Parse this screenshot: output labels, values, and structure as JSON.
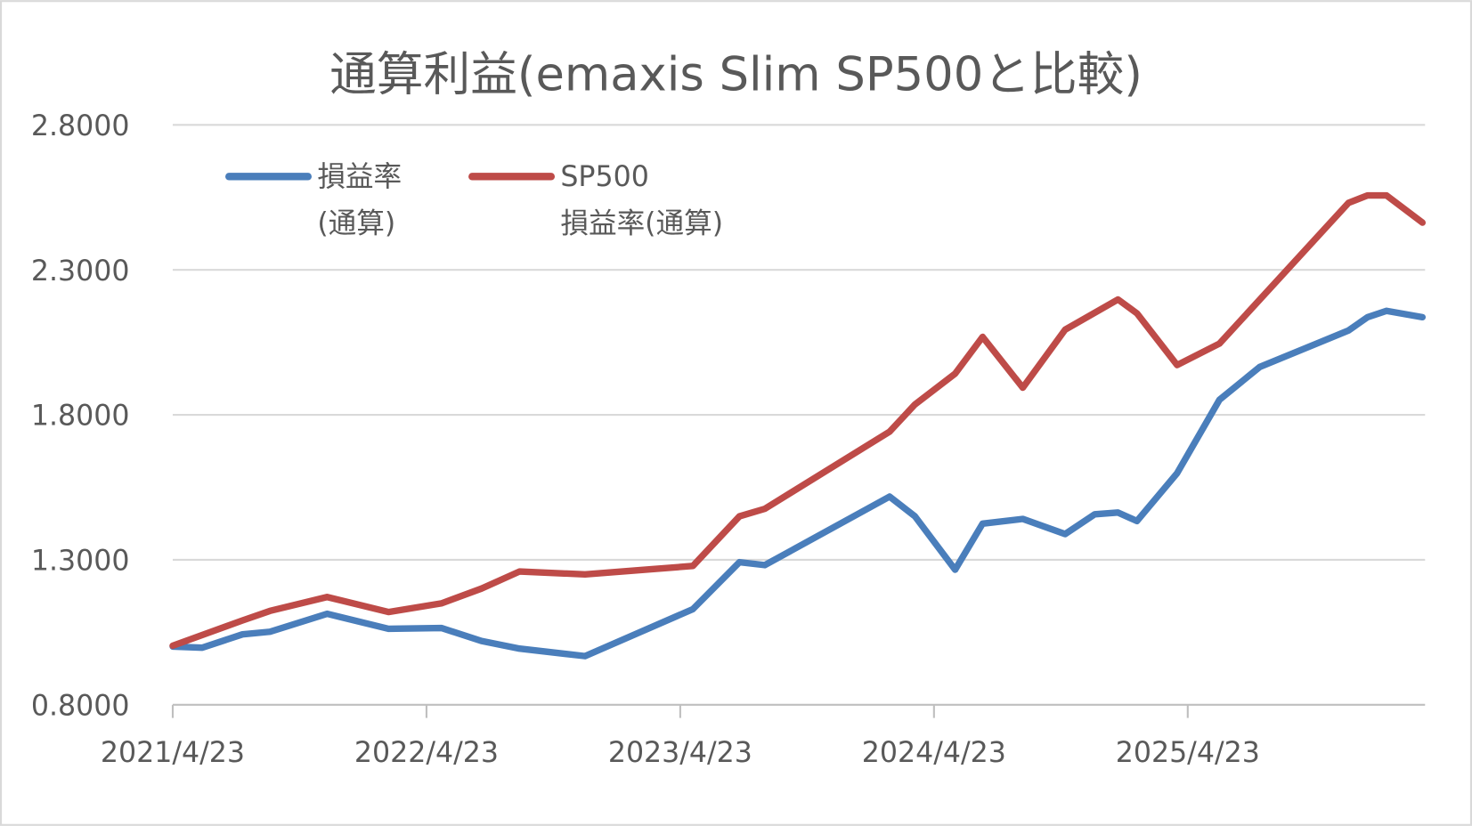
{
  "chart_data": {
    "type": "line",
    "title": "通算利益(emaxis Slim SP500と比較)",
    "xlabel": "",
    "ylabel": "",
    "x_unit": "months since 2021/4/23",
    "xlim": [
      0,
      59.5
    ],
    "ylim": [
      0.8,
      2.8
    ],
    "y_ticks": [
      "0.8000",
      "1.3000",
      "1.8000",
      "2.3000",
      "2.8000"
    ],
    "y_tick_values": [
      0.8,
      1.3,
      1.8,
      2.3,
      2.8
    ],
    "x_ticks": [
      "2021/4/23",
      "2022/4/23",
      "2023/4/23",
      "2024/4/23",
      "2025/4/23"
    ],
    "x_tick_values": [
      0,
      12,
      24,
      36,
      48
    ],
    "grid": true,
    "legend_position": "top-left",
    "series": [
      {
        "name": "損益率(通算)",
        "legend_lines": [
          "損益率",
          "(通算)"
        ],
        "color": "#4a7ebb",
        "points": [
          [
            0,
            1.001
          ],
          [
            1.4,
            0.997
          ],
          [
            3.3,
            1.043
          ],
          [
            4.6,
            1.052
          ],
          [
            7.3,
            1.114
          ],
          [
            10.2,
            1.062
          ],
          [
            12.7,
            1.065
          ],
          [
            14.6,
            1.02
          ],
          [
            16.4,
            0.994
          ],
          [
            19.5,
            0.968
          ],
          [
            24.6,
            1.13
          ],
          [
            26.8,
            1.292
          ],
          [
            28.0,
            1.282
          ],
          [
            33.9,
            1.518
          ],
          [
            35.1,
            1.45
          ],
          [
            37.0,
            1.266
          ],
          [
            38.3,
            1.425
          ],
          [
            40.2,
            1.441
          ],
          [
            42.2,
            1.389
          ],
          [
            43.6,
            1.457
          ],
          [
            44.7,
            1.463
          ],
          [
            45.6,
            1.434
          ],
          [
            47.5,
            1.599
          ],
          [
            49.5,
            1.852
          ],
          [
            51.4,
            1.965
          ],
          [
            55.6,
            2.091
          ],
          [
            56.5,
            2.137
          ],
          [
            57.4,
            2.159
          ],
          [
            59.1,
            2.137
          ]
        ]
      },
      {
        "name": "SP500損益率(通算)",
        "legend_lines": [
          "SP500",
          "損益率(通算)"
        ],
        "color": "#be4b48",
        "points": [
          [
            0,
            1.004
          ],
          [
            3.3,
            1.091
          ],
          [
            4.6,
            1.124
          ],
          [
            7.3,
            1.172
          ],
          [
            10.2,
            1.12
          ],
          [
            12.7,
            1.15
          ],
          [
            14.6,
            1.201
          ],
          [
            16.4,
            1.26
          ],
          [
            19.5,
            1.25
          ],
          [
            24.6,
            1.279
          ],
          [
            26.8,
            1.45
          ],
          [
            28.0,
            1.476
          ],
          [
            33.9,
            1.742
          ],
          [
            35.1,
            1.836
          ],
          [
            37.0,
            1.942
          ],
          [
            38.3,
            2.069
          ],
          [
            40.2,
            1.894
          ],
          [
            42.2,
            2.094
          ],
          [
            44.7,
            2.198
          ],
          [
            45.6,
            2.15
          ],
          [
            47.5,
            1.972
          ],
          [
            49.5,
            2.046
          ],
          [
            55.6,
            2.531
          ],
          [
            56.5,
            2.557
          ],
          [
            57.4,
            2.557
          ],
          [
            59.1,
            2.463
          ]
        ]
      }
    ]
  }
}
